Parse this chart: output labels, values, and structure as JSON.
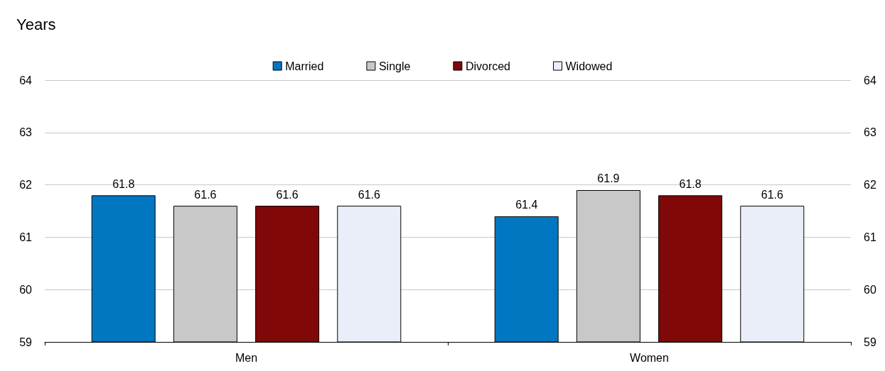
{
  "chart_data": {
    "type": "bar",
    "ylabel": "Years",
    "categories": [
      "Men",
      "Women"
    ],
    "series": [
      {
        "name": "Married",
        "color": "#0077c0",
        "values": [
          61.8,
          61.4
        ]
      },
      {
        "name": "Single",
        "color": "#c8c8c8",
        "values": [
          61.6,
          61.9
        ]
      },
      {
        "name": "Divorced",
        "color": "#800808",
        "values": [
          61.6,
          61.8
        ]
      },
      {
        "name": "Widowed",
        "color": "#eaeef8",
        "values": [
          61.6,
          61.6
        ]
      }
    ],
    "ylim": [
      59,
      64
    ],
    "yticks": [
      59,
      60,
      61,
      62,
      63,
      64
    ],
    "y2lim": [
      59,
      64
    ],
    "y2ticks": [
      59,
      60,
      61,
      62,
      63,
      64
    ],
    "grid": "y",
    "legend": "top",
    "data_labels": true
  }
}
